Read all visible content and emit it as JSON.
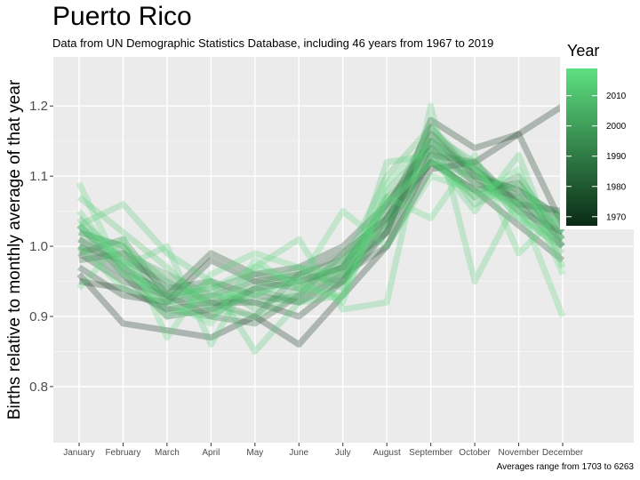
{
  "title": "Puerto Rico",
  "subtitle": "Data from UN Demographic Statistics Database, including 46 years from 1967 to 2019",
  "caption": "Averages range from 1703 to 6263",
  "chart_data": {
    "type": "line",
    "ylabel": "Births relative to monthly average of that year",
    "xlabel": "",
    "categories": [
      "January",
      "February",
      "March",
      "April",
      "May",
      "June",
      "July",
      "August",
      "September",
      "October",
      "November",
      "December"
    ],
    "ylim": [
      0.72,
      1.27
    ],
    "yticks": [
      0.8,
      0.9,
      1.0,
      1.1,
      1.2
    ],
    "ytick_labels": [
      "0.8",
      "0.9",
      "1.0",
      "1.1",
      "1.2"
    ],
    "grid": true,
    "legend": {
      "title": "Year",
      "placement": "right",
      "range": [
        1967,
        2019
      ],
      "ticks": [
        1970,
        1980,
        1990,
        2000,
        2010
      ],
      "color_low": "#0a2a15",
      "color_high": "#5ee081"
    },
    "series": [
      {
        "year": 1967,
        "values": [
          0.96,
          0.89,
          0.88,
          0.87,
          0.9,
          0.86,
          0.93,
          1.0,
          1.11,
          1.12,
          1.16,
          1.2
        ]
      },
      {
        "year": 1970,
        "values": [
          0.95,
          0.94,
          0.91,
          0.92,
          0.92,
          0.9,
          0.95,
          1.02,
          1.18,
          1.14,
          1.16,
          1.03
        ]
      },
      {
        "year": 1973,
        "values": [
          0.97,
          0.93,
          0.92,
          0.98,
          0.95,
          0.96,
          0.99,
          1.04,
          1.12,
          1.08,
          1.03,
          0.98
        ]
      },
      {
        "year": 1976,
        "values": [
          0.99,
          0.95,
          0.93,
          0.99,
          0.96,
          0.97,
          1.0,
          1.06,
          1.15,
          1.11,
          1.06,
          1.0
        ]
      },
      {
        "year": 1979,
        "values": [
          1.0,
          0.96,
          0.9,
          0.91,
          0.94,
          0.95,
          0.97,
          1.02,
          1.16,
          1.1,
          1.08,
          1.04
        ]
      },
      {
        "year": 1982,
        "values": [
          1.01,
          0.97,
          0.93,
          0.9,
          0.89,
          0.93,
          0.96,
          1.0,
          1.13,
          1.12,
          1.06,
          1.05
        ]
      },
      {
        "year": 1985,
        "values": [
          0.98,
          0.99,
          0.94,
          0.95,
          0.93,
          0.92,
          0.95,
          1.04,
          1.14,
          1.09,
          1.07,
          1.01
        ]
      },
      {
        "year": 1988,
        "values": [
          1.02,
          1.0,
          0.92,
          0.93,
          0.95,
          0.94,
          0.97,
          1.05,
          1.17,
          1.1,
          1.05,
          1.02
        ]
      },
      {
        "year": 1991,
        "values": [
          1.0,
          0.98,
          0.95,
          0.92,
          0.9,
          0.96,
          0.98,
          1.03,
          1.12,
          1.08,
          1.09,
          1.0
        ]
      },
      {
        "year": 1994,
        "values": [
          0.99,
          1.01,
          0.93,
          0.94,
          0.96,
          0.95,
          0.97,
          1.06,
          1.14,
          1.11,
          1.07,
          1.03
        ]
      },
      {
        "year": 1997,
        "values": [
          1.03,
          0.97,
          0.91,
          0.9,
          0.94,
          0.92,
          0.96,
          1.02,
          1.13,
          1.07,
          1.1,
          1.01
        ]
      },
      {
        "year": 2000,
        "values": [
          1.01,
          0.99,
          0.96,
          0.93,
          0.92,
          0.93,
          0.99,
          1.04,
          1.15,
          1.09,
          1.06,
          1.02
        ]
      },
      {
        "year": 2003,
        "values": [
          1.03,
          0.96,
          0.94,
          0.91,
          0.93,
          0.96,
          0.95,
          1.07,
          1.12,
          1.1,
          1.08,
          1.04
        ]
      },
      {
        "year": 2006,
        "values": [
          1.04,
          0.98,
          0.92,
          0.95,
          0.91,
          0.94,
          0.98,
          1.03,
          1.16,
          1.12,
          1.05,
          0.99
        ]
      },
      {
        "year": 2009,
        "values": [
          1.02,
          1.0,
          0.95,
          0.92,
          0.94,
          0.97,
          0.94,
          1.08,
          1.14,
          1.06,
          1.09,
          1.02
        ]
      },
      {
        "year": 2011,
        "values": [
          1.07,
          1.02,
          0.97,
          0.91,
          0.9,
          0.93,
          0.97,
          1.1,
          1.17,
          1.11,
          1.04,
          1.0
        ]
      },
      {
        "year": 2013,
        "values": [
          1.03,
          1.06,
          0.99,
          0.95,
          0.85,
          0.92,
          0.93,
          1.12,
          1.13,
          1.05,
          1.13,
          0.97
        ]
      },
      {
        "year": 2015,
        "values": [
          1.05,
          0.97,
          1.0,
          0.86,
          0.97,
          1.01,
          0.91,
          0.92,
          1.2,
          0.95,
          1.07,
          1.03
        ]
      },
      {
        "year": 2016,
        "values": [
          0.94,
          1.01,
          0.87,
          0.96,
          0.99,
          0.97,
          0.96,
          1.07,
          1.04,
          1.13,
          0.99,
          1.05
        ]
      },
      {
        "year": 2017,
        "values": [
          1.09,
          0.96,
          0.93,
          0.94,
          0.97,
          0.95,
          1.05,
          1.0,
          1.1,
          1.08,
          1.06,
          0.9
        ]
      },
      {
        "year": 2018,
        "values": [
          1.0,
          0.94,
          0.92,
          0.89,
          0.98,
          0.94,
          0.93,
          1.06,
          1.12,
          1.07,
          1.11,
          0.96
        ]
      },
      {
        "year": 2019,
        "values": [
          1.03,
          0.98,
          0.9,
          0.93,
          0.93,
          0.95,
          0.92,
          1.09,
          1.15,
          1.11,
          1.04,
          1.01
        ]
      }
    ]
  }
}
